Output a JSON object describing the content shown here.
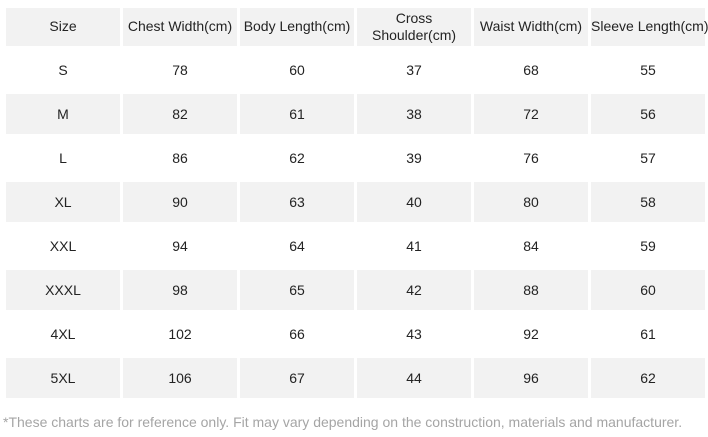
{
  "chart_data": {
    "type": "table",
    "title": "",
    "columns": [
      "Size",
      "Chest Width(cm)",
      "Body Length(cm)",
      "Cross Shoulder(cm)",
      "Waist Width(cm)",
      "Sleeve Length(cm)"
    ],
    "rows": [
      [
        "S",
        "78",
        "60",
        "37",
        "68",
        "55"
      ],
      [
        "M",
        "82",
        "61",
        "38",
        "72",
        "56"
      ],
      [
        "L",
        "86",
        "62",
        "39",
        "76",
        "57"
      ],
      [
        "XL",
        "90",
        "63",
        "40",
        "80",
        "58"
      ],
      [
        "XXL",
        "94",
        "64",
        "41",
        "84",
        "59"
      ],
      [
        "XXXL",
        "98",
        "65",
        "42",
        "88",
        "60"
      ],
      [
        "4XL",
        "102",
        "66",
        "43",
        "92",
        "61"
      ],
      [
        "5XL",
        "106",
        "67",
        "44",
        "96",
        "62"
      ]
    ],
    "layout": {
      "striped": true,
      "stripe_color": "#f2f2f2",
      "header_background": "#f2f2f2"
    }
  },
  "footnote": "*These charts are for reference only. Fit may vary depending on the construction, materials and manufacturer.",
  "colors": {
    "cell_background": "#f2f2f2",
    "page_background": "#ffffff",
    "text": "#232323",
    "footnote_text": "#a5a5a5"
  }
}
